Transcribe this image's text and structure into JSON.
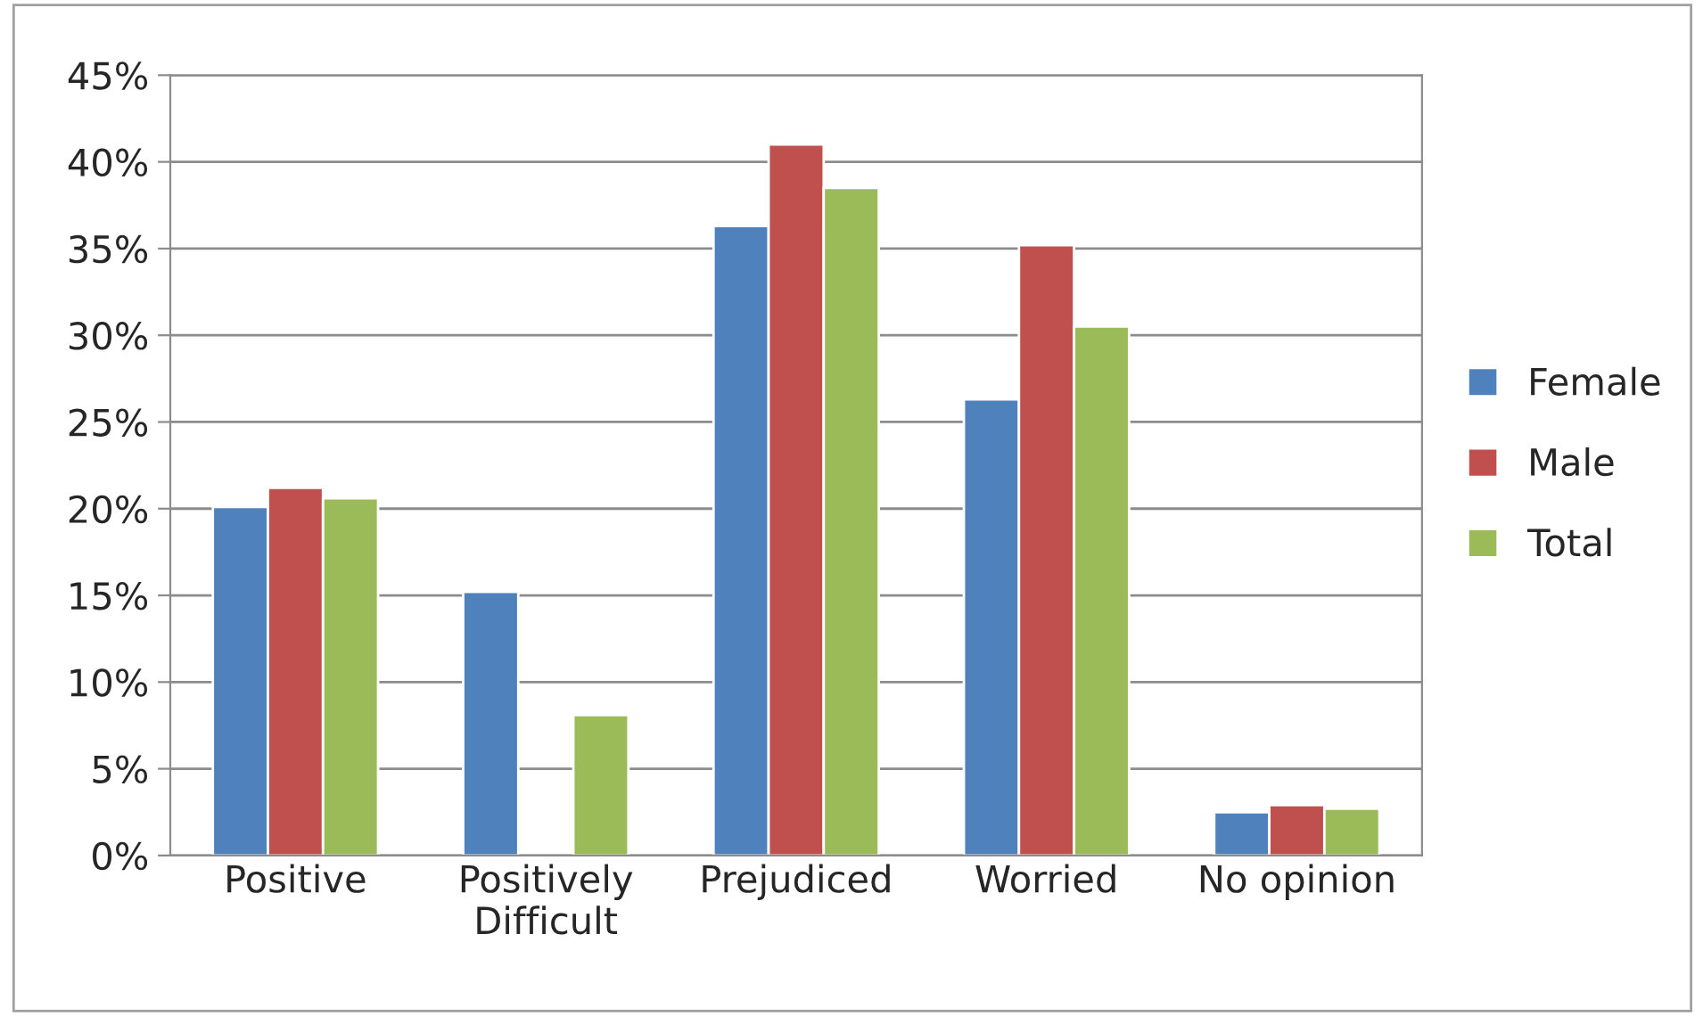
{
  "chart_data": {
    "type": "bar",
    "categories": [
      "Positive",
      "Positively\nDifficult",
      "Prejudiced",
      "Worried",
      "No opinion"
    ],
    "series": [
      {
        "name": "Female",
        "color": "#4f81bd",
        "values": [
          20.1,
          15.2,
          36.3,
          26.3,
          2.5
        ]
      },
      {
        "name": "Male",
        "color": "#c0504d",
        "values": [
          21.2,
          null,
          41.0,
          35.2,
          2.9
        ]
      },
      {
        "name": "Total",
        "color": "#9bbb59",
        "values": [
          20.6,
          8.1,
          38.5,
          30.5,
          2.7
        ]
      }
    ],
    "ylim": [
      0,
      45
    ],
    "yticks": [
      {
        "value": 0,
        "label": "0%"
      },
      {
        "value": 5,
        "label": "5%"
      },
      {
        "value": 10,
        "label": "10%"
      },
      {
        "value": 15,
        "label": "15%"
      },
      {
        "value": 20,
        "label": "20%"
      },
      {
        "value": 25,
        "label": "25%"
      },
      {
        "value": 30,
        "label": "30%"
      },
      {
        "value": 35,
        "label": "35%"
      },
      {
        "value": 40,
        "label": "40%"
      },
      {
        "value": 45,
        "label": "45%"
      }
    ],
    "grid": "y",
    "legend": "right"
  }
}
